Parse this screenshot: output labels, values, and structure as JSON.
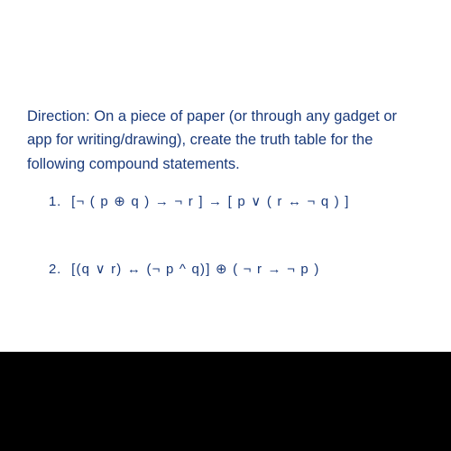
{
  "direction_text": "Direction: On a piece of paper (or through any gadget or app for writing/drawing), create the truth table for the following compound statements.",
  "problems": {
    "item1_num": "1.",
    "item1_expr": "[¬ ( p ⊕ q ) → ¬ r ] → [ p ∨ ( r ↔ ¬ q ) ]",
    "item2_num": "2.",
    "item2_expr": "[(q ∨ r) ↔ (¬ p ^ q)] ⊕ ( ¬ r → ¬ p )"
  },
  "colors": {
    "text": "#1a3a7a",
    "page_bg": "#ffffff",
    "outer_bg": "#000000"
  },
  "fontsize": {
    "direction": 16.5,
    "problem": 15
  }
}
